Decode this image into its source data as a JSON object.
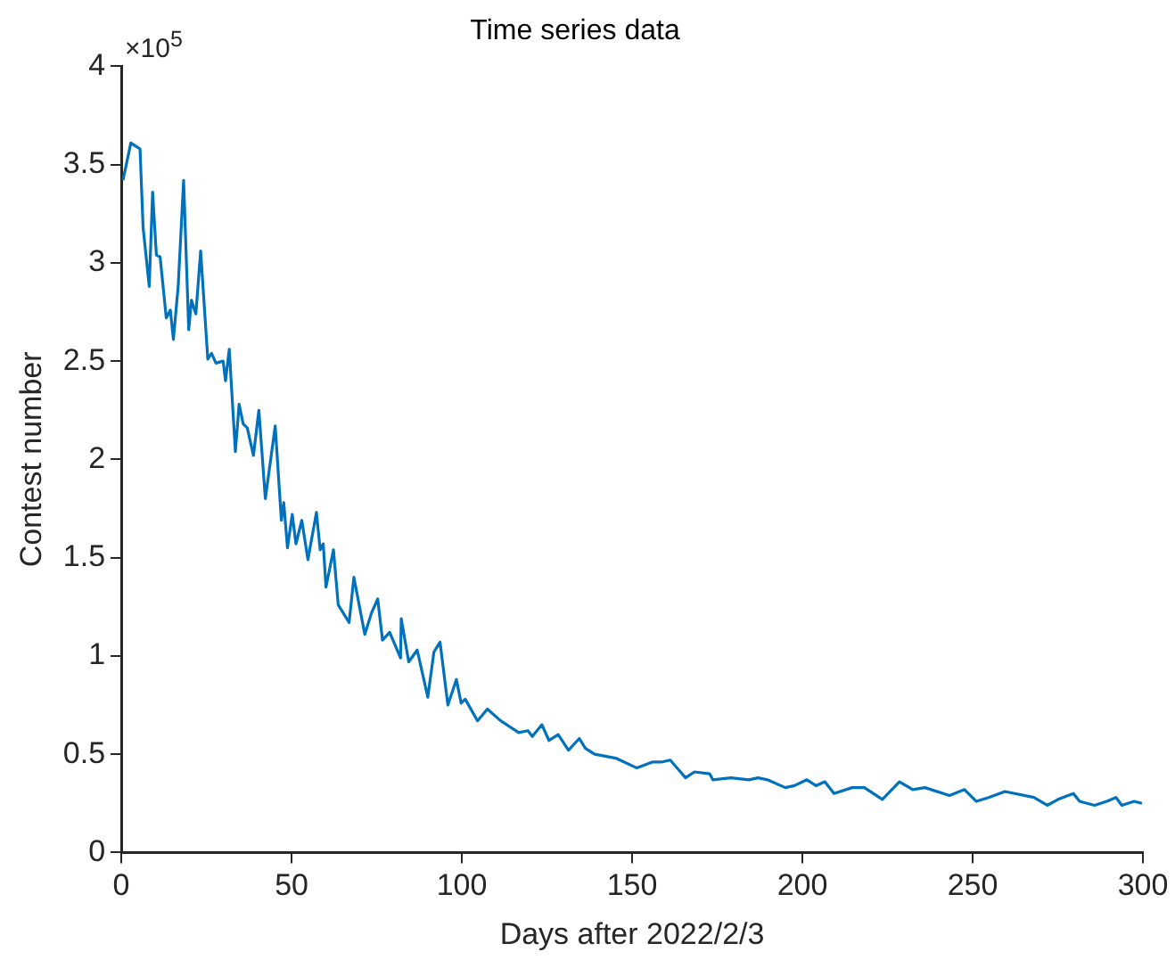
{
  "chart_data": {
    "type": "line",
    "title": "Time series data",
    "xlabel": "Days after 2022/2/3",
    "ylabel": "Contest number",
    "annotations": [
      "×10$^{5}$"
    ],
    "xlim": [
      0,
      300
    ],
    "xticks": [
      0,
      50,
      100,
      150,
      200,
      250,
      300
    ],
    "ylim": [
      0,
      4
    ],
    "yticks": [
      0,
      0.5,
      1,
      1.5,
      2,
      2.5,
      3,
      3.5,
      4
    ],
    "grid": false,
    "legend": false,
    "marker": "none",
    "line_style": "solid",
    "series": [
      {
        "color": "#0072bd",
        "x": [
          0.5,
          2.8,
          4.6,
          5.5,
          6.4,
          8.2,
          9.2,
          10.3,
          11.4,
          13.2,
          14.4,
          15.3,
          16.7,
          18.3,
          19.8,
          20.6,
          21.9,
          23.3,
          25.4,
          26.5,
          27.8,
          29.9,
          30.6,
          31.7,
          33.5,
          34.6,
          35.8,
          37,
          38.8,
          40.4,
          42.3,
          45.2,
          47,
          47.7,
          48.8,
          50.2,
          51.3,
          53,
          54.8,
          57.3,
          58.4,
          59.3,
          60.1,
          62.3,
          63.7,
          66.9,
          68.3,
          71.5,
          73.5,
          75.3,
          76.7,
          78.8,
          82,
          82.2,
          84.4,
          86.9,
          90,
          91.8,
          93.6,
          95.9,
          98.4,
          99.8,
          101,
          104.6,
          107.5,
          111.4,
          116.7,
          119.4,
          120.7,
          123.5,
          125.6,
          128.3,
          131.3,
          134.5,
          136.3,
          139,
          145.2,
          151.4,
          155.9,
          158.6,
          161.2,
          165.7,
          168.3,
          172.8,
          173.7,
          179,
          184.3,
          187,
          189.7,
          195,
          197.7,
          201.3,
          204,
          206.6,
          209.3,
          214.6,
          218.2,
          223.5,
          228.5,
          232.4,
          236,
          243.2,
          247.6,
          251.1,
          254.7,
          259.5,
          268,
          271.9,
          275.1,
          279.6,
          281.4,
          285.8,
          289.4,
          292.1,
          293.8,
          297.4,
          299.7
        ],
        "values": [
          3.42,
          3.61,
          3.59,
          3.58,
          3.18,
          2.88,
          3.36,
          3.04,
          3.03,
          2.72,
          2.76,
          2.61,
          2.88,
          3.42,
          2.66,
          2.81,
          2.74,
          3.06,
          2.51,
          2.54,
          2.49,
          2.5,
          2.4,
          2.56,
          2.04,
          2.28,
          2.18,
          2.16,
          2.02,
          2.25,
          1.8,
          2.17,
          1.69,
          1.78,
          1.55,
          1.72,
          1.57,
          1.69,
          1.49,
          1.73,
          1.54,
          1.57,
          1.35,
          1.54,
          1.26,
          1.17,
          1.4,
          1.11,
          1.22,
          1.29,
          1.08,
          1.12,
          0.99,
          1.19,
          0.97,
          1.03,
          0.79,
          1.02,
          1.07,
          0.75,
          0.88,
          0.76,
          0.78,
          0.67,
          0.73,
          0.67,
          0.61,
          0.62,
          0.59,
          0.65,
          0.57,
          0.6,
          0.52,
          0.58,
          0.53,
          0.5,
          0.48,
          0.43,
          0.46,
          0.46,
          0.47,
          0.38,
          0.41,
          0.4,
          0.37,
          0.38,
          0.37,
          0.38,
          0.37,
          0.33,
          0.34,
          0.37,
          0.34,
          0.36,
          0.3,
          0.33,
          0.33,
          0.27,
          0.36,
          0.32,
          0.33,
          0.29,
          0.32,
          0.26,
          0.28,
          0.31,
          0.28,
          0.24,
          0.27,
          0.3,
          0.26,
          0.24,
          0.26,
          0.28,
          0.24,
          0.26,
          0.25
        ]
      }
    ]
  }
}
